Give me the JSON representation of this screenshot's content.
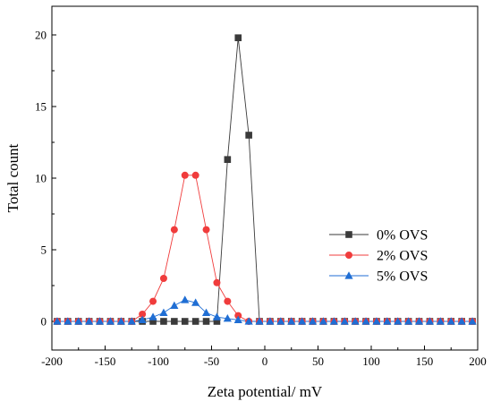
{
  "chart_data": {
    "type": "line",
    "xlabel": "Zeta potential/ mV",
    "ylabel": "Total count",
    "xlim": [
      -200,
      200
    ],
    "ylim": [
      -2,
      22
    ],
    "xticks": [
      -200,
      -150,
      -100,
      -50,
      0,
      50,
      100,
      150,
      200
    ],
    "yticks": [
      0,
      5,
      10,
      15,
      20
    ],
    "xtick_labels": [
      "-200",
      "-150",
      "-100",
      "-50",
      "0",
      "50",
      "100",
      "150",
      "200"
    ],
    "ytick_labels": [
      "0",
      "5",
      "10",
      "15",
      "20"
    ],
    "grid": false,
    "legend_position": "center-right",
    "series": [
      {
        "name": "0% OVS",
        "color": "#3a3a3a",
        "marker": "square",
        "x": [
          -195,
          -185,
          -175,
          -165,
          -155,
          -145,
          -135,
          -125,
          -115,
          -105,
          -95,
          -85,
          -75,
          -65,
          -55,
          -45,
          -35,
          -25,
          -15,
          -5,
          5,
          15,
          25,
          35,
          45,
          55,
          65,
          75,
          85,
          95,
          105,
          115,
          125,
          135,
          145,
          155,
          165,
          175,
          185,
          195
        ],
        "y": [
          0,
          0,
          0,
          0,
          0,
          0,
          0,
          0,
          0,
          0,
          0,
          0,
          0,
          0,
          0,
          0,
          11.3,
          19.8,
          13.0,
          0,
          0,
          0,
          0,
          0,
          0,
          0,
          0,
          0,
          0,
          0,
          0,
          0,
          0,
          0,
          0,
          0,
          0,
          0,
          0,
          0
        ]
      },
      {
        "name": "2% OVS",
        "color": "#f03c3c",
        "marker": "circle",
        "x": [
          -195,
          -185,
          -175,
          -165,
          -155,
          -145,
          -135,
          -125,
          -115,
          -105,
          -95,
          -85,
          -75,
          -65,
          -55,
          -45,
          -35,
          -25,
          -15,
          -5,
          5,
          15,
          25,
          35,
          45,
          55,
          65,
          75,
          85,
          95,
          105,
          115,
          125,
          135,
          145,
          155,
          165,
          175,
          185,
          195
        ],
        "y": [
          0,
          0,
          0,
          0,
          0,
          0,
          0,
          0,
          0.5,
          1.4,
          3.0,
          6.4,
          10.2,
          10.2,
          6.4,
          2.7,
          1.4,
          0.4,
          0,
          0,
          0,
          0,
          0,
          0,
          0,
          0,
          0,
          0,
          0,
          0,
          0,
          0,
          0,
          0,
          0,
          0,
          0,
          0,
          0,
          0
        ]
      },
      {
        "name": "5% OVS",
        "color": "#1f6ed4",
        "marker": "triangle",
        "x": [
          -195,
          -185,
          -175,
          -165,
          -155,
          -145,
          -135,
          -125,
          -115,
          -105,
          -95,
          -85,
          -75,
          -65,
          -55,
          -45,
          -35,
          -25,
          -15,
          -5,
          5,
          15,
          25,
          35,
          45,
          55,
          65,
          75,
          85,
          95,
          105,
          115,
          125,
          135,
          145,
          155,
          165,
          175,
          185,
          195
        ],
        "y": [
          0,
          0,
          0,
          0,
          0,
          0,
          0,
          0,
          0.1,
          0.3,
          0.6,
          1.1,
          1.5,
          1.3,
          0.6,
          0.3,
          0.2,
          0.1,
          0,
          0,
          0,
          0,
          0,
          0,
          0,
          0,
          0,
          0,
          0,
          0,
          0,
          0,
          0,
          0,
          0,
          0,
          0,
          0,
          0,
          0
        ]
      }
    ]
  }
}
